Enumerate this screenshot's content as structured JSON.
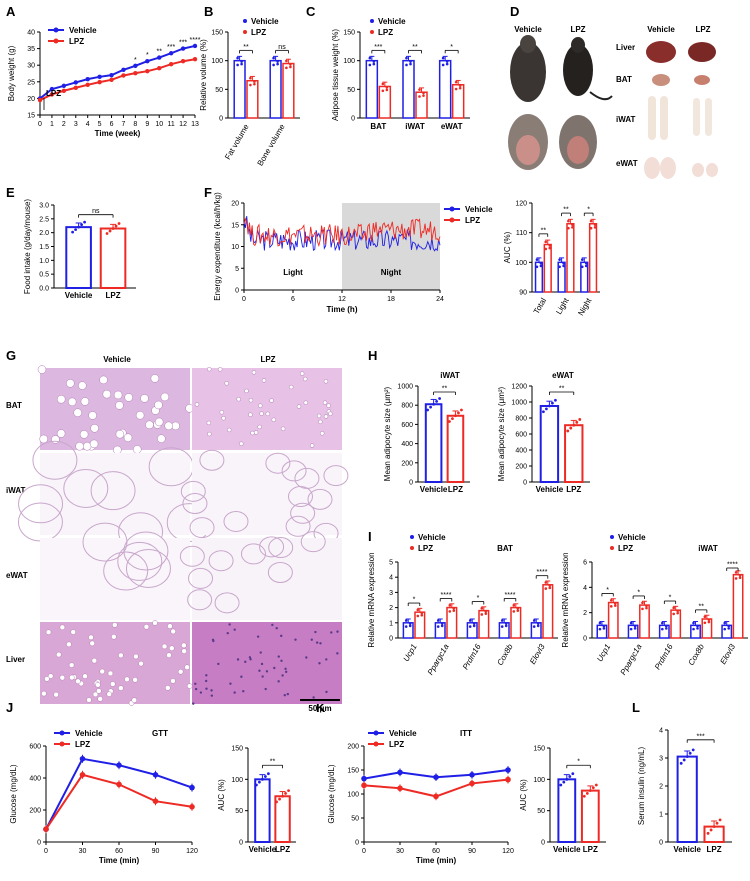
{
  "panel_letters": [
    "A",
    "B",
    "C",
    "D",
    "E",
    "F",
    "G",
    "H",
    "I",
    "J",
    "K",
    "L"
  ],
  "colors": {
    "vehicle": "#1f1fe6",
    "lpz": "#ee2a24",
    "night": "#d9d9d9"
  },
  "panel_D": {
    "col_vehicle": "Vehicle",
    "col_lpz": "LPZ",
    "row_labels": [
      "Liver",
      "BAT",
      "iWAT",
      "eWAT"
    ]
  },
  "panel_G": {
    "col_vehicle": "Vehicle",
    "col_lpz": "LPZ",
    "row_labels": [
      "BAT",
      "iWAT",
      "eWAT",
      "Liver"
    ],
    "scale_bar": "50 μm"
  },
  "chart_data": [
    {
      "id": "A",
      "type": "line",
      "xlabel": "Time (week)",
      "ylabel": "Body weight (g)",
      "xlim": [
        0,
        13
      ],
      "ylim": [
        15,
        40
      ],
      "xticks": [
        0,
        1,
        2,
        3,
        4,
        5,
        6,
        7,
        8,
        9,
        10,
        11,
        12,
        13
      ],
      "yticks": [
        15,
        20,
        25,
        30,
        35,
        40
      ],
      "legend": [
        "Vehicle",
        "LPZ"
      ],
      "annotation": "LPZ",
      "sig_x": [
        8,
        9,
        10,
        11,
        12,
        13
      ],
      "sig": [
        "*",
        "*",
        "**",
        "***",
        "***",
        "****"
      ],
      "series": [
        {
          "name": "Vehicle",
          "x": [
            0,
            1,
            2,
            3,
            4,
            5,
            6,
            7,
            8,
            9,
            10,
            11,
            12,
            13
          ],
          "values": [
            20.0,
            22.8,
            23.8,
            24.8,
            25.8,
            26.5,
            27.0,
            28.6,
            29.8,
            31.2,
            32.3,
            33.6,
            35.0,
            35.8
          ]
        },
        {
          "name": "LPZ",
          "x": [
            0,
            1,
            2,
            3,
            4,
            5,
            6,
            7,
            8,
            9,
            10,
            11,
            12,
            13
          ],
          "values": [
            19.5,
            21.2,
            22.3,
            23.2,
            24.1,
            24.9,
            25.6,
            26.9,
            27.6,
            28.2,
            29.1,
            30.3,
            31.2,
            31.8
          ]
        }
      ]
    },
    {
      "id": "B",
      "type": "bar",
      "ylabel": "Relative volume (%)",
      "ylim": [
        0,
        150
      ],
      "yticks": [
        0,
        50,
        100,
        150
      ],
      "categories": [
        "Fat volume",
        "Bone volume"
      ],
      "legend": [
        "Vehicle",
        "LPZ"
      ],
      "sig": [
        "**",
        "ns"
      ],
      "series": [
        {
          "name": "Vehicle",
          "values": [
            100,
            100
          ]
        },
        {
          "name": "LPZ",
          "values": [
            65,
            95
          ]
        }
      ]
    },
    {
      "id": "C",
      "type": "bar",
      "ylabel": "Adipose tissue weight (%)",
      "ylim": [
        0,
        150
      ],
      "yticks": [
        0,
        50,
        100,
        150
      ],
      "categories": [
        "BAT",
        "iWAT",
        "eWAT"
      ],
      "legend": [
        "Vehicle",
        "LPZ"
      ],
      "sig": [
        "***",
        "**",
        "*"
      ],
      "series": [
        {
          "name": "Vehicle",
          "values": [
            100,
            100,
            100
          ]
        },
        {
          "name": "LPZ",
          "values": [
            55,
            45,
            58
          ]
        }
      ]
    },
    {
      "id": "E",
      "type": "bar",
      "ylabel": "Food intake (g/day/mouse)",
      "ylim": [
        0,
        3.0
      ],
      "yticks": [
        0,
        0.5,
        1.0,
        1.5,
        2.0,
        2.5,
        3.0
      ],
      "categories": [
        "Vehicle",
        "LPZ"
      ],
      "sig": [
        "ns"
      ],
      "values": [
        2.2,
        2.15
      ]
    },
    {
      "id": "F",
      "type": "line",
      "xlabel": "Time (h)",
      "ylabel": "Energy expenditure (kcal/h/kg)",
      "xlim": [
        0,
        24
      ],
      "ylim": [
        0,
        20
      ],
      "xticks": [
        0,
        6,
        12,
        18,
        24
      ],
      "yticks": [
        0,
        5,
        10,
        15,
        20
      ],
      "legend": [
        "Vehicle",
        "LPZ"
      ],
      "period_labels": [
        "Light",
        "Night"
      ],
      "night_range": [
        12,
        24
      ]
    },
    {
      "id": "F_AUC",
      "type": "bar",
      "ylabel": "AUC (%)",
      "ylim": [
        90,
        120
      ],
      "yticks": [
        90,
        100,
        110,
        120
      ],
      "categories": [
        "Total",
        "Light",
        "Night"
      ],
      "sig": [
        "**",
        "**",
        "*"
      ],
      "series": [
        {
          "name": "Vehicle",
          "values": [
            100,
            100,
            100
          ]
        },
        {
          "name": "LPZ",
          "values": [
            106,
            113,
            113
          ]
        }
      ]
    },
    {
      "id": "H1",
      "type": "bar",
      "title": "iWAT",
      "ylabel": "Mean adipocyte size (μm²)",
      "ylim": [
        0,
        1000
      ],
      "yticks": [
        0,
        200,
        400,
        600,
        800,
        1000
      ],
      "categories": [
        "Vehicle",
        "LPZ"
      ],
      "sig": [
        "**"
      ],
      "values": [
        810,
        690
      ]
    },
    {
      "id": "H2",
      "type": "bar",
      "title": "eWAT",
      "ylabel": "Mean adipocyte size (μm²)",
      "ylim": [
        0,
        1200
      ],
      "yticks": [
        0,
        200,
        400,
        600,
        800,
        1000,
        1200
      ],
      "categories": [
        "Vehicle",
        "LPZ"
      ],
      "sig": [
        "**"
      ],
      "values": [
        950,
        710
      ]
    },
    {
      "id": "I1",
      "type": "bar",
      "title": "BAT",
      "ylabel": "Relative mRNA expression",
      "ylim": [
        0,
        5
      ],
      "yticks": [
        0,
        1,
        2,
        3,
        4,
        5
      ],
      "categories": [
        "Ucp1",
        "Ppargc1a",
        "Prdm16",
        "Cox8b",
        "Elovl3"
      ],
      "legend": [
        "Vehicle",
        "LPZ"
      ],
      "sig": [
        "*",
        "****",
        "*",
        "****",
        "****"
      ],
      "series": [
        {
          "name": "Vehicle",
          "values": [
            1,
            1,
            1,
            1,
            1
          ]
        },
        {
          "name": "LPZ",
          "values": [
            1.7,
            2.0,
            1.8,
            2.0,
            3.5
          ]
        }
      ]
    },
    {
      "id": "I2",
      "type": "bar",
      "title": "iWAT",
      "ylabel": "Relative mRNA expression",
      "ylim": [
        0,
        6
      ],
      "yticks": [
        0,
        2,
        4,
        6
      ],
      "categories": [
        "Ucp1",
        "Ppargc1a",
        "Prdm16",
        "Cox8b",
        "Elovl3"
      ],
      "legend": [
        "Vehicle",
        "LPZ"
      ],
      "sig": [
        "*",
        "*",
        "*",
        "**",
        "****"
      ],
      "series": [
        {
          "name": "Vehicle",
          "values": [
            1,
            1,
            1,
            1,
            1
          ]
        },
        {
          "name": "LPZ",
          "values": [
            2.8,
            2.6,
            2.2,
            1.5,
            5.0
          ]
        }
      ]
    },
    {
      "id": "J",
      "type": "line",
      "title": "GTT",
      "xlabel": "Time (min)",
      "ylabel": "Glucose (mg/dL)",
      "xlim": [
        0,
        120
      ],
      "ylim": [
        0,
        600
      ],
      "xticks": [
        0,
        30,
        60,
        90,
        120
      ],
      "yticks": [
        0,
        200,
        400,
        600
      ],
      "legend": [
        "Vehicle",
        "LPZ"
      ],
      "series": [
        {
          "name": "Vehicle",
          "x": [
            0,
            30,
            60,
            90,
            120
          ],
          "values": [
            80,
            520,
            480,
            420,
            340
          ]
        },
        {
          "name": "LPZ",
          "x": [
            0,
            30,
            60,
            90,
            120
          ],
          "values": [
            80,
            420,
            360,
            255,
            220
          ]
        }
      ]
    },
    {
      "id": "J_AUC",
      "type": "bar",
      "ylabel": "AUC (%)",
      "ylim": [
        0,
        150
      ],
      "yticks": [
        0,
        50,
        100,
        150
      ],
      "categories": [
        "Vehicle",
        "LPZ"
      ],
      "sig": [
        "**"
      ],
      "values": [
        100,
        73
      ]
    },
    {
      "id": "K",
      "type": "line",
      "title": "ITT",
      "xlabel": "Time (min)",
      "ylabel": "Glucose (mg/dL)",
      "xlim": [
        0,
        120
      ],
      "ylim": [
        0,
        200
      ],
      "xticks": [
        0,
        30,
        60,
        90,
        120
      ],
      "yticks": [
        0,
        50,
        100,
        150,
        200
      ],
      "legend": [
        "Vehicle",
        "LPZ"
      ],
      "series": [
        {
          "name": "Vehicle",
          "x": [
            0,
            30,
            60,
            90,
            120
          ],
          "values": [
            132,
            145,
            135,
            140,
            150
          ]
        },
        {
          "name": "LPZ",
          "x": [
            0,
            30,
            60,
            90,
            120
          ],
          "values": [
            118,
            112,
            95,
            122,
            130
          ]
        }
      ]
    },
    {
      "id": "K_AUC",
      "type": "bar",
      "ylabel": "AUC (%)",
      "ylim": [
        0,
        150
      ],
      "yticks": [
        0,
        50,
        100,
        150
      ],
      "categories": [
        "Vehicle",
        "LPZ"
      ],
      "sig": [
        "*"
      ],
      "values": [
        100,
        82
      ]
    },
    {
      "id": "L",
      "type": "bar",
      "ylabel": "Serum insulin (ng/mL)",
      "ylim": [
        0,
        4
      ],
      "yticks": [
        0,
        1,
        2,
        3,
        4
      ],
      "categories": [
        "Vehicle",
        "LPZ"
      ],
      "sig": [
        "***"
      ],
      "values": [
        3.05,
        0.55
      ]
    }
  ]
}
